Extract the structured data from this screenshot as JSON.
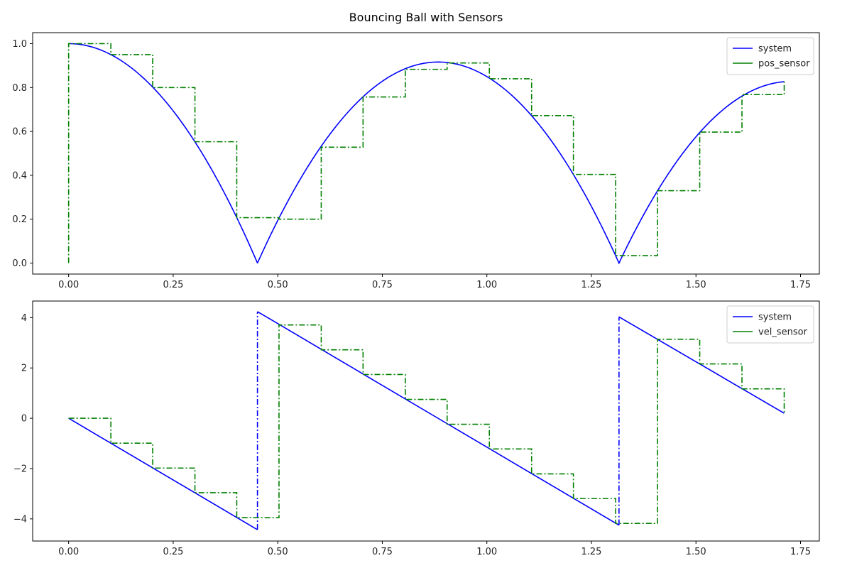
{
  "figure": {
    "title": "Bouncing Ball with Sensors"
  },
  "chart_data": [
    {
      "type": "line",
      "title": "",
      "xlabel": "",
      "ylabel": "",
      "xlim": [
        -0.086,
        1.795
      ],
      "ylim": [
        -0.05,
        1.05
      ],
      "xticks": [
        "0.00",
        "0.25",
        "0.50",
        "0.75",
        "1.00",
        "1.25",
        "1.50",
        "1.75"
      ],
      "xtick_values": [
        0,
        0.25,
        0.5,
        0.75,
        1.0,
        1.25,
        1.5,
        1.75
      ],
      "yticks": [
        "0.0",
        "0.2",
        "0.4",
        "0.6",
        "0.8",
        "1.0"
      ],
      "ytick_values": [
        0,
        0.2,
        0.4,
        0.6,
        0.8,
        1.0
      ],
      "grid": false,
      "legend": "top-right",
      "series": [
        {
          "name": "system",
          "kind": "bouncing-position",
          "color": "#0000ff",
          "style": "solid",
          "segments": [
            {
              "t0": 0.0,
              "t1": 0.4515,
              "h0": 1.0,
              "v0": 0.0
            },
            {
              "t0": 0.4515,
              "t1": 1.316,
              "h0": 0.0,
              "v0": 4.24
            },
            {
              "t0": 1.316,
              "t1": 1.711,
              "h0": 0.0,
              "v0": 4.03
            }
          ],
          "gravity": 9.81
        },
        {
          "name": "pos_sensor",
          "kind": "step",
          "color": "#008000",
          "style": "dashdot",
          "x": [
            0.0,
            0.0,
            0.101,
            0.201,
            0.302,
            0.402,
            0.503,
            0.604,
            0.704,
            0.805,
            0.905,
            1.006,
            1.107,
            1.207,
            1.308,
            1.408,
            1.509,
            1.61,
            1.711
          ],
          "y": [
            0.0,
            1.0,
            0.95,
            0.8,
            0.553,
            0.207,
            0.2,
            0.528,
            0.757,
            0.883,
            0.912,
            0.84,
            0.672,
            0.404,
            0.034,
            0.33,
            0.597,
            0.768,
            0.836
          ]
        }
      ]
    },
    {
      "type": "line",
      "title": "",
      "xlabel": "",
      "ylabel": "",
      "xlim": [
        -0.086,
        1.795
      ],
      "ylim": [
        -4.88,
        4.66
      ],
      "xticks": [
        "0.00",
        "0.25",
        "0.50",
        "0.75",
        "1.00",
        "1.25",
        "1.50",
        "1.75"
      ],
      "xtick_values": [
        0,
        0.25,
        0.5,
        0.75,
        1.0,
        1.25,
        1.5,
        1.75
      ],
      "yticks": [
        "−4",
        "−2",
        "0",
        "2",
        "4"
      ],
      "ytick_values": [
        -4,
        -2,
        0,
        2,
        4
      ],
      "grid": false,
      "legend": "top-right",
      "series": [
        {
          "name": "system",
          "kind": "polyline",
          "color": "#0000ff",
          "style": "solid",
          "x": [
            0.0,
            0.4515,
            0.4515,
            1.316,
            1.316,
            1.711
          ],
          "y": [
            0.0,
            -4.43,
            4.24,
            -4.25,
            4.03,
            0.2
          ],
          "jump_style": "dashdot"
        },
        {
          "name": "vel_sensor",
          "kind": "step",
          "color": "#008000",
          "style": "dashdot",
          "x": [
            0.0,
            0.101,
            0.201,
            0.302,
            0.402,
            0.503,
            0.604,
            0.704,
            0.805,
            0.905,
            1.006,
            1.107,
            1.207,
            1.308,
            1.408,
            1.509,
            1.61,
            1.711
          ],
          "y": [
            0.0,
            -0.99,
            -1.98,
            -2.96,
            -3.95,
            3.71,
            2.72,
            1.74,
            0.75,
            -0.24,
            -1.22,
            -2.21,
            -3.19,
            -4.18,
            3.14,
            2.16,
            1.17,
            0.18
          ]
        }
      ]
    }
  ]
}
